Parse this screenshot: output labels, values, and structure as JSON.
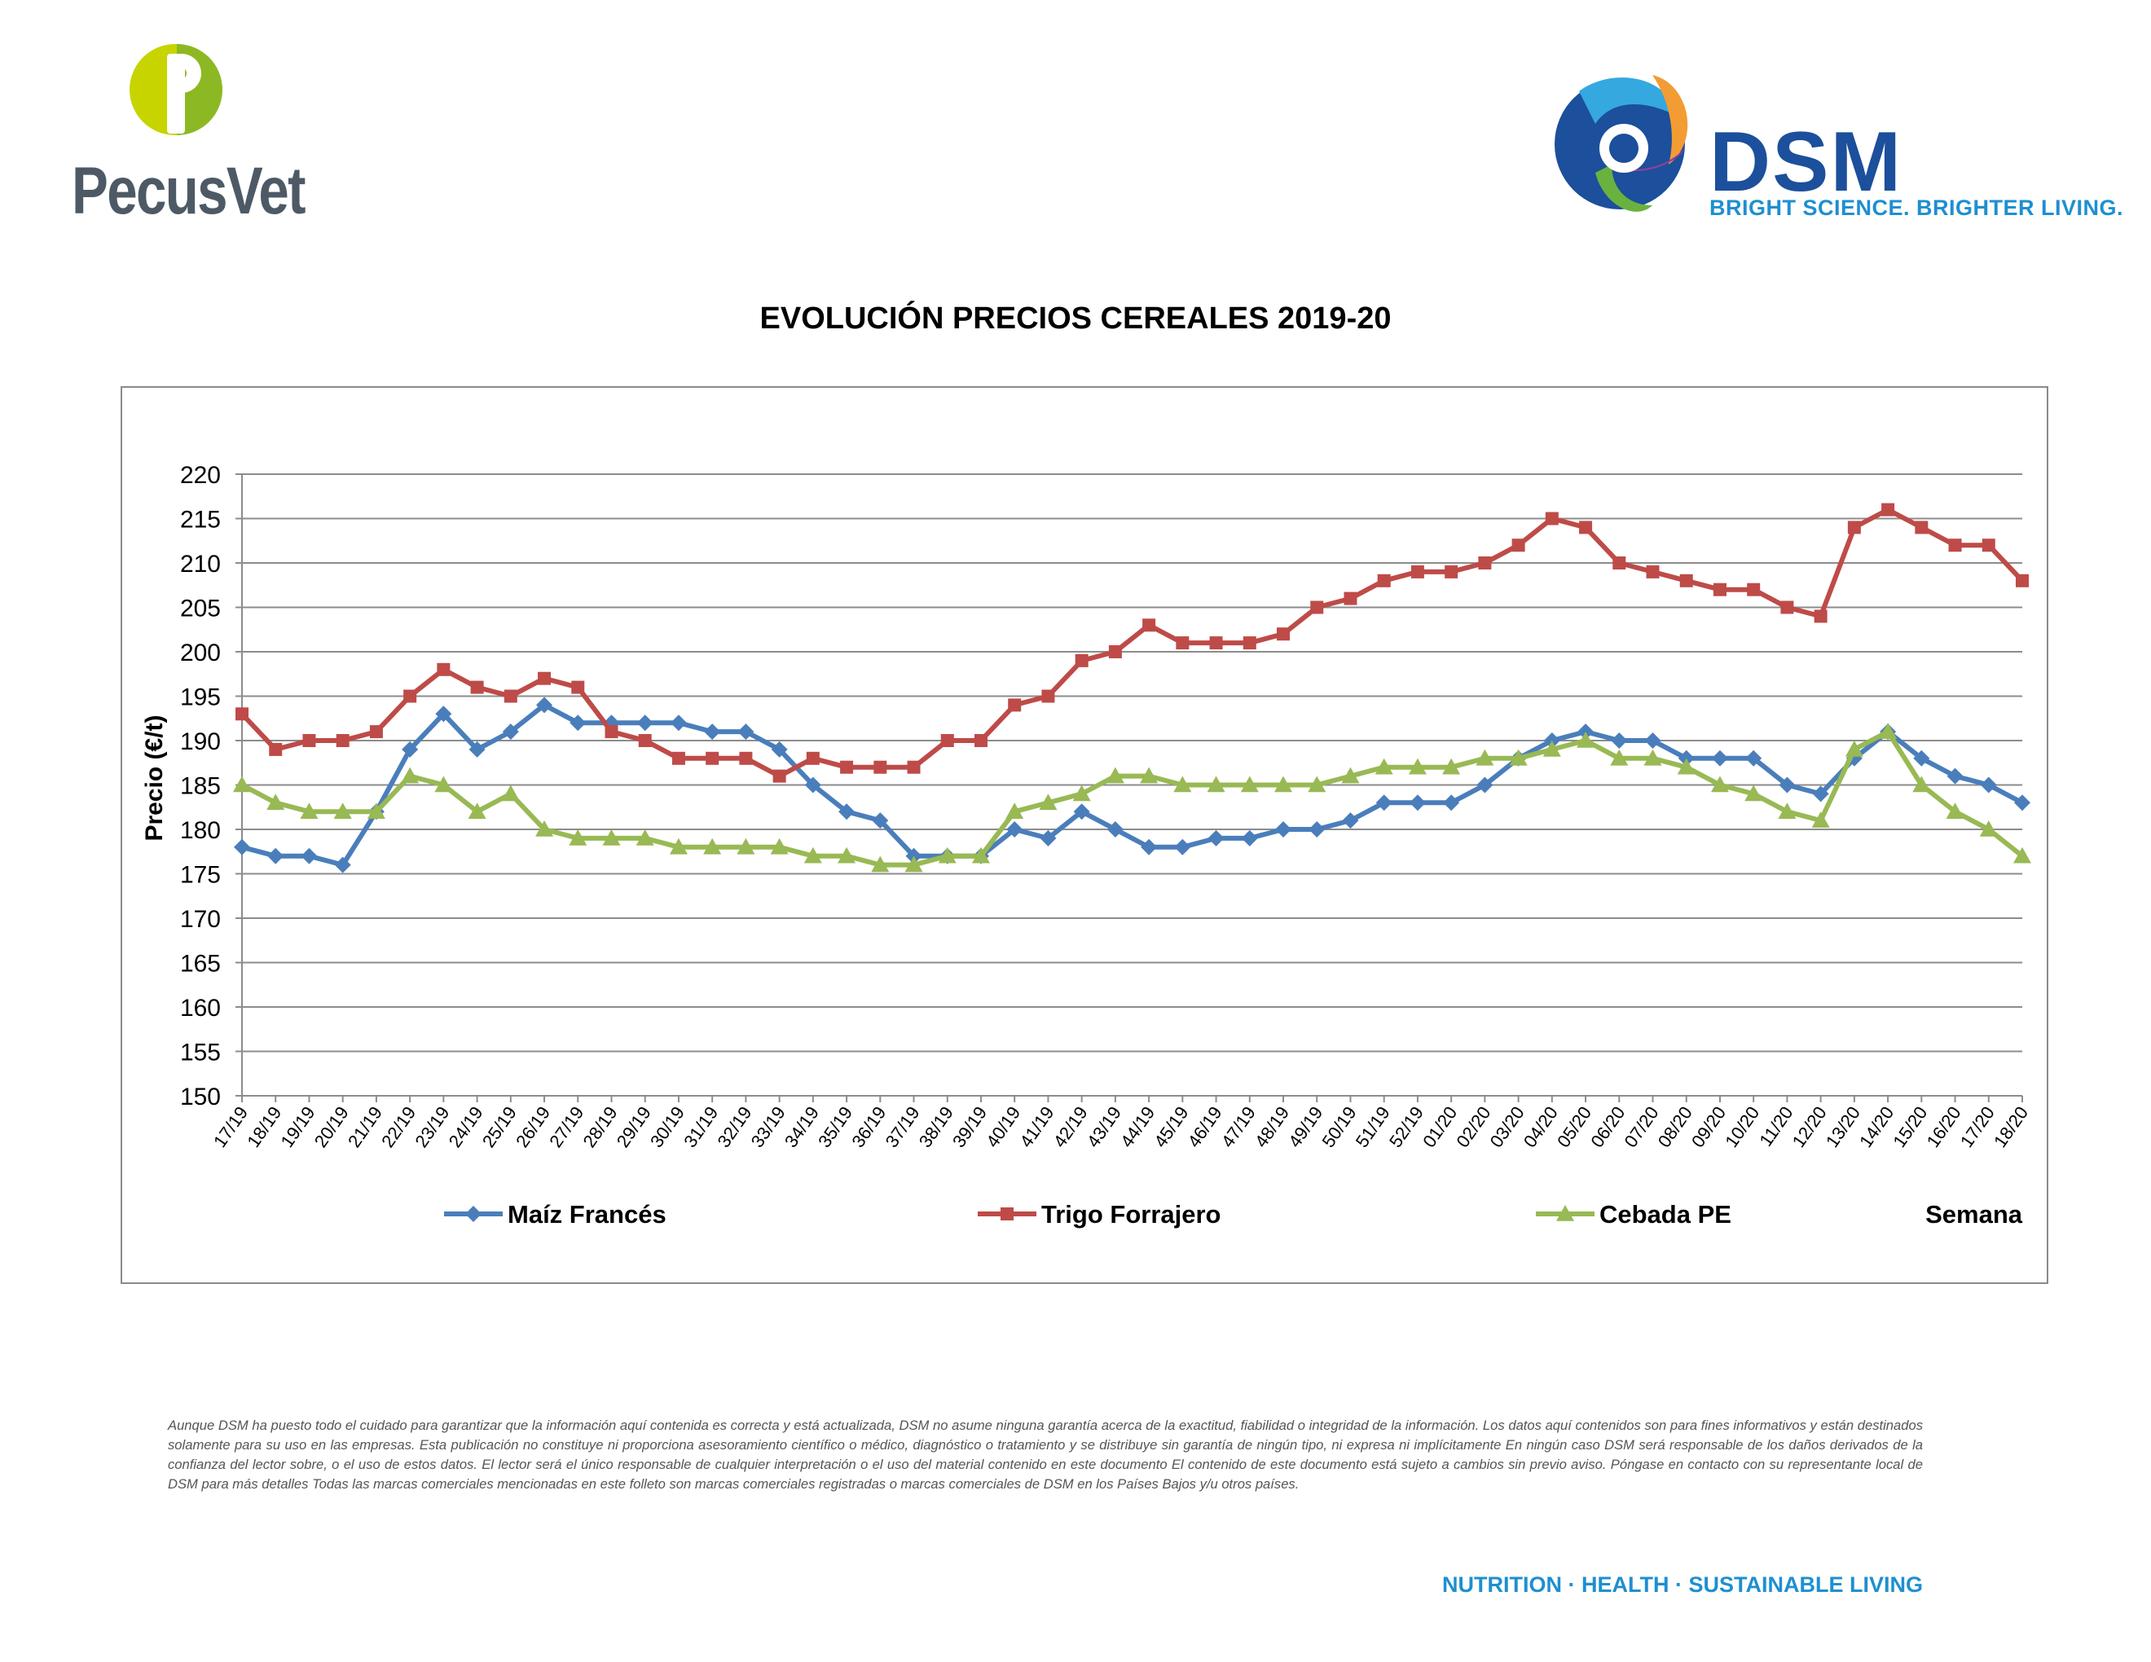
{
  "brands": {
    "pecusvet": "PecusVet",
    "dsm_name": "DSM",
    "dsm_tagline": "BRIGHT SCIENCE. BRIGHTER LIVING."
  },
  "colors": {
    "maiz": "#4a7ebb",
    "trigo": "#be4b48",
    "cebada": "#98b954",
    "grid": "#8c8c8c",
    "brand_blue": "#1c4f9c",
    "brand_light_blue": "#1e8fd0"
  },
  "chart_data": {
    "type": "line",
    "title": "EVOLUCIÓN PRECIOS CEREALES 2019-20",
    "xlabel": "Semana",
    "ylabel": "Precio (€/t)",
    "ylim": [
      150,
      220
    ],
    "ytick_step": 5,
    "grid": true,
    "legend_position": "bottom",
    "categories": [
      "17/19",
      "18/19",
      "19/19",
      "20/19",
      "21/19",
      "22/19",
      "23/19",
      "24/19",
      "25/19",
      "26/19",
      "27/19",
      "28/19",
      "29/19",
      "30/19",
      "31/19",
      "32/19",
      "33/19",
      "34/19",
      "35/19",
      "36/19",
      "37/19",
      "38/19",
      "39/19",
      "40/19",
      "41/19",
      "42/19",
      "43/19",
      "44/19",
      "45/19",
      "46/19",
      "47/19",
      "48/19",
      "49/19",
      "50/19",
      "51/19",
      "52/19",
      "01/20",
      "02/20",
      "03/20",
      "04/20",
      "05/20",
      "06/20",
      "07/20",
      "08/20",
      "09/20",
      "10/20",
      "11/20",
      "12/20",
      "13/20",
      "14/20",
      "15/20",
      "16/20",
      "17/20",
      "18/20"
    ],
    "series": [
      {
        "name": "Maíz Francés",
        "marker": "diamond",
        "values": [
          178,
          177,
          177,
          176,
          182,
          189,
          193,
          189,
          191,
          194,
          192,
          192,
          192,
          192,
          191,
          191,
          189,
          185,
          182,
          181,
          177,
          177,
          177,
          180,
          179,
          182,
          180,
          178,
          178,
          179,
          179,
          180,
          180,
          181,
          183,
          183,
          183,
          185,
          188,
          190,
          191,
          190,
          190,
          188,
          188,
          188,
          185,
          184,
          188,
          191,
          188,
          186,
          185,
          183
        ]
      },
      {
        "name": "Trigo Forrajero",
        "marker": "square",
        "values": [
          193,
          189,
          190,
          190,
          191,
          195,
          198,
          196,
          195,
          197,
          196,
          191,
          190,
          188,
          188,
          188,
          186,
          188,
          187,
          187,
          187,
          190,
          190,
          194,
          195,
          199,
          200,
          203,
          201,
          201,
          201,
          202,
          205,
          206,
          208,
          209,
          209,
          210,
          212,
          215,
          214,
          210,
          209,
          208,
          207,
          207,
          205,
          204,
          214,
          216,
          214,
          212,
          212,
          208
        ]
      },
      {
        "name": "Cebada PE",
        "marker": "triangle",
        "values": [
          185,
          183,
          182,
          182,
          182,
          186,
          185,
          182,
          184,
          180,
          179,
          179,
          179,
          178,
          178,
          178,
          178,
          177,
          177,
          176,
          176,
          177,
          177,
          182,
          183,
          184,
          186,
          186,
          185,
          185,
          185,
          185,
          185,
          186,
          187,
          187,
          187,
          188,
          188,
          189,
          190,
          188,
          188,
          187,
          185,
          184,
          182,
          181,
          189,
          191,
          185,
          182,
          180,
          177
        ]
      }
    ]
  },
  "disclaimer": "Aunque DSM ha puesto todo el cuidado para garantizar que la información aquí contenida es correcta y está actualizada, DSM no asume ninguna garantía acerca de la exactitud, fiabilidad o integridad de la información. Los datos aquí contenidos son para fines informativos y están destinados solamente para su uso en las empresas. Esta publicación no constituye ni proporciona asesoramiento científico o médico, diagnóstico o tratamiento y se distribuye sin garantía de ningún tipo, ni expresa ni implícitamente En ningún caso DSM será responsable de los daños derivados de la confianza del lector sobre, o el uso de estos datos. El lector será el único responsable de cualquier interpretación o el uso del material contenido en este documento El contenido de este documento está sujeto a cambios sin previo aviso. Póngase en contacto con su representante local de DSM para más detalles Todas las marcas comerciales mencionadas en este folleto son marcas comerciales registradas o marcas comerciales de DSM en los Países Bajos y/u otros países.",
  "footer_tagline": "NUTRITION  ·  HEALTH  ·  SUSTAINABLE LIVING"
}
